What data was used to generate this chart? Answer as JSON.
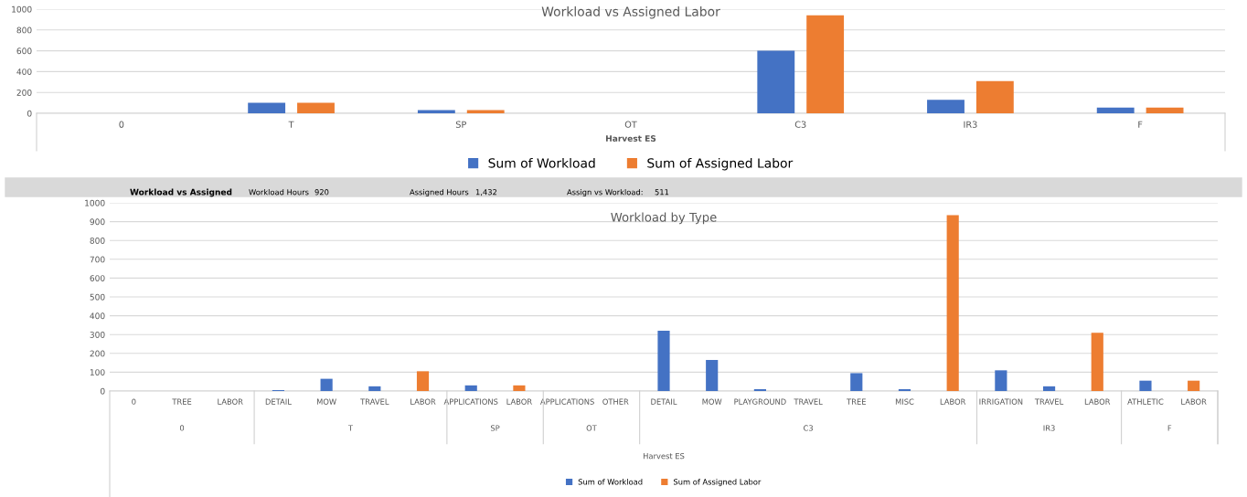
{
  "chart_data": [
    {
      "type": "bar",
      "title": "Workload vs Assigned Labor",
      "xlabel": "Harvest ES",
      "categories": [
        "0",
        "T",
        "SP",
        "OT",
        "C3",
        "IR3",
        "F"
      ],
      "series": [
        {
          "name": "Sum of Workload",
          "color": "#4472c4",
          "values": [
            0,
            100,
            30,
            0,
            600,
            130,
            55
          ]
        },
        {
          "name": "Sum of Assigned Labor",
          "color": "#ed7d31",
          "values": [
            0,
            100,
            30,
            0,
            940,
            310,
            55
          ]
        }
      ],
      "ylim": [
        0,
        1000
      ],
      "yticks": [
        0,
        200,
        400,
        600,
        800,
        1000
      ],
      "grid": "y",
      "legend": "bottom"
    },
    {
      "type": "other",
      "annotations": [
        "Workload vs Assigned",
        "Workload Hours",
        "920",
        "Assigned Hours",
        "1,432",
        "Assign vs Workload:",
        "511"
      ]
    },
    {
      "type": "bar",
      "title": "Workload by Type",
      "xlabel": "Harvest ES",
      "categories": [
        "0",
        "TREE",
        "LABOR",
        "DETAIL",
        "MOW",
        "TRAVEL",
        "LABOR",
        "APPLICATIONS",
        "LABOR",
        "APPLICATIONS",
        "OTHER",
        "DETAIL",
        "MOW",
        "PLAYGROUND",
        "TRAVEL",
        "TREE",
        "MISC",
        "LABOR",
        "IRRIGATION",
        "TRAVEL",
        "LABOR",
        "ATHLETIC",
        "LABOR"
      ],
      "annotations": [
        "0",
        "T",
        "SP",
        "OT",
        "C3",
        "IR3",
        "F"
      ],
      "series": [
        {
          "name": "Sum of Workload",
          "color": "#4472c4",
          "values": [
            0,
            0,
            null,
            5,
            65,
            25,
            null,
            30,
            null,
            0,
            0,
            320,
            165,
            10,
            0,
            95,
            10,
            null,
            110,
            25,
            null,
            55,
            null
          ]
        },
        {
          "name": "Sum of Assigned Labor",
          "color": "#ed7d31",
          "values": [
            null,
            null,
            0,
            null,
            null,
            null,
            105,
            null,
            30,
            null,
            null,
            null,
            null,
            null,
            null,
            null,
            null,
            935,
            null,
            null,
            310,
            null,
            55
          ]
        }
      ],
      "ylim": [
        0,
        1000
      ],
      "yticks": [
        0,
        100,
        200,
        300,
        400,
        500,
        600,
        700,
        800,
        900,
        1000
      ],
      "grid": "y",
      "legend": "bottom"
    }
  ]
}
